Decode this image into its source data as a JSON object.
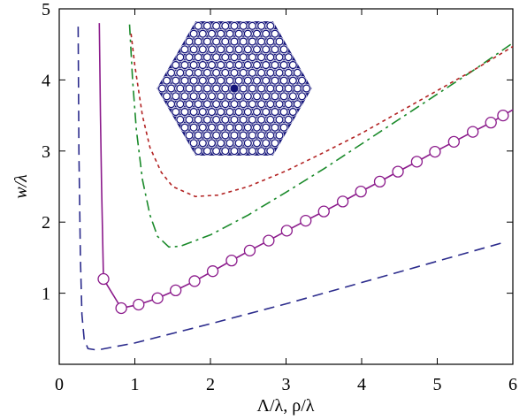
{
  "chart_data": {
    "type": "line",
    "x_label": "Λ/λ, ρ/λ",
    "y_label": "w/λ",
    "xlim": [
      0,
      6
    ],
    "ylim": [
      0,
      5
    ],
    "xticks": [
      0,
      1,
      2,
      3,
      4,
      5,
      6
    ],
    "yticks": [
      1,
      2,
      3,
      4,
      5
    ],
    "series": [
      {
        "color": "#2b2b8c",
        "style": "dashed",
        "x": [
          0.25,
          0.26,
          0.28,
          0.3,
          0.33,
          0.38,
          0.5,
          1,
          2,
          3,
          4,
          5,
          5.9
        ],
        "values": [
          4.75,
          3,
          1.5,
          0.7,
          0.35,
          0.22,
          0.2,
          0.3,
          0.57,
          0.85,
          1.15,
          1.45,
          1.72
        ]
      },
      {
        "color": "#8b1a8b",
        "style": "solid",
        "x": [
          0.53,
          0.545,
          0.56,
          0.585,
          0.82,
          1.05,
          1.3,
          1.54,
          1.79,
          2.03,
          2.28,
          2.52,
          2.77,
          3.01,
          3.26,
          3.5,
          3.75,
          3.99,
          4.24,
          4.48,
          4.73,
          4.97,
          5.22,
          5.47,
          5.71,
          5.87,
          6
        ],
        "values": [
          4.8,
          3.5,
          2.5,
          1.2,
          0.79,
          0.84,
          0.93,
          1.04,
          1.17,
          1.31,
          1.46,
          1.6,
          1.74,
          1.88,
          2.02,
          2.15,
          2.29,
          2.43,
          2.57,
          2.71,
          2.85,
          2.99,
          3.13,
          3.27,
          3.4,
          3.5,
          3.58
        ]
      },
      {
        "color": "#8b1a8b",
        "style": "none",
        "marker": "circle",
        "x": [
          0.585,
          0.82,
          1.05,
          1.3,
          1.54,
          1.79,
          2.03,
          2.28,
          2.52,
          2.77,
          3.01,
          3.26,
          3.5,
          3.75,
          3.99,
          4.24,
          4.48,
          4.73,
          4.97,
          5.22,
          5.47,
          5.71,
          5.87
        ],
        "values": [
          1.2,
          0.79,
          0.84,
          0.93,
          1.04,
          1.17,
          1.31,
          1.46,
          1.6,
          1.74,
          1.88,
          2.02,
          2.15,
          2.29,
          2.43,
          2.57,
          2.71,
          2.85,
          2.99,
          3.13,
          3.27,
          3.4,
          3.5
        ]
      },
      {
        "color": "#1a8a2a",
        "style": "dashdot",
        "x": [
          0.93,
          0.97,
          1.02,
          1.1,
          1.2,
          1.3,
          1.45,
          1.6,
          2,
          2.5,
          3,
          3.5,
          4,
          4.5,
          5,
          5.5,
          6
        ],
        "values": [
          4.78,
          4,
          3.3,
          2.6,
          2.1,
          1.8,
          1.65,
          1.66,
          1.82,
          2.1,
          2.42,
          2.75,
          3.1,
          3.45,
          3.8,
          4.15,
          4.52
        ]
      },
      {
        "color": "#b22222",
        "style": "dotted",
        "x": [
          0.95,
          1,
          1.1,
          1.2,
          1.35,
          1.5,
          1.8,
          2.1,
          2.5,
          3,
          3.5,
          4,
          4.5,
          5,
          5.5,
          6
        ],
        "values": [
          4.65,
          4.2,
          3.5,
          3.05,
          2.7,
          2.5,
          2.36,
          2.38,
          2.5,
          2.72,
          2.98,
          3.25,
          3.55,
          3.85,
          4.15,
          4.47
        ]
      }
    ]
  }
}
